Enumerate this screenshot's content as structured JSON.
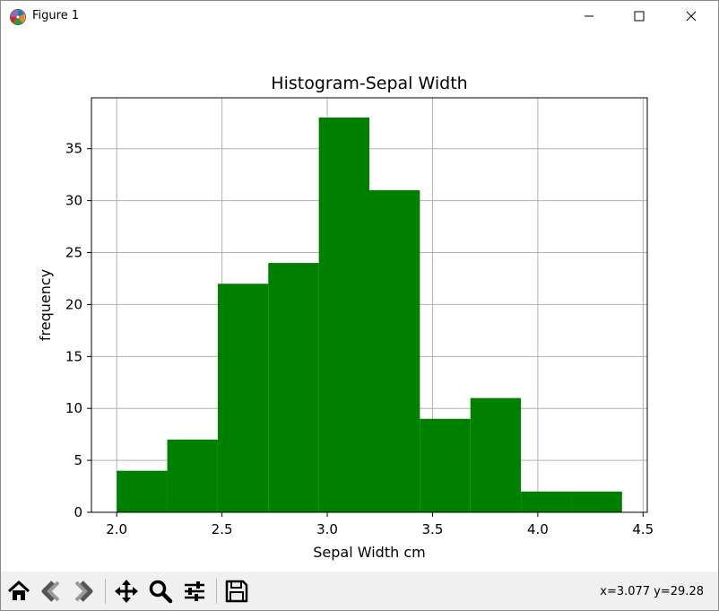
{
  "window": {
    "title": "Figure 1"
  },
  "figure": {
    "coord_readout": "x=3.077 y=29.28"
  },
  "toolbar": {
    "buttons": [
      "home",
      "back",
      "forward",
      "pan",
      "zoom",
      "configure-subplots",
      "save"
    ]
  },
  "colors": {
    "bar": "#008000",
    "grid": "#b0b0b0",
    "toolbar_bg": "#f0f0f0"
  },
  "chart_data": {
    "type": "bar",
    "title": "Histogram-Sepal Width",
    "xlabel": "Sepal Width cm",
    "ylabel": "frequency",
    "bin_edges": [
      2.0,
      2.24,
      2.48,
      2.72,
      2.96,
      3.2,
      3.44,
      3.68,
      3.92,
      4.16,
      4.4
    ],
    "values": [
      4,
      7,
      22,
      24,
      38,
      31,
      9,
      11,
      2,
      2
    ],
    "xlim": [
      1.88,
      4.52
    ],
    "ylim": [
      0,
      39.9
    ],
    "xticks": [
      2.0,
      2.5,
      3.0,
      3.5,
      4.0,
      4.5
    ],
    "xtick_labels": [
      "2.0",
      "2.5",
      "3.0",
      "3.5",
      "4.0",
      "4.5"
    ],
    "yticks": [
      0,
      5,
      10,
      15,
      20,
      25,
      30,
      35
    ],
    "ytick_labels": [
      "0",
      "5",
      "10",
      "15",
      "20",
      "25",
      "30",
      "35"
    ],
    "grid": true,
    "legend": "none"
  }
}
